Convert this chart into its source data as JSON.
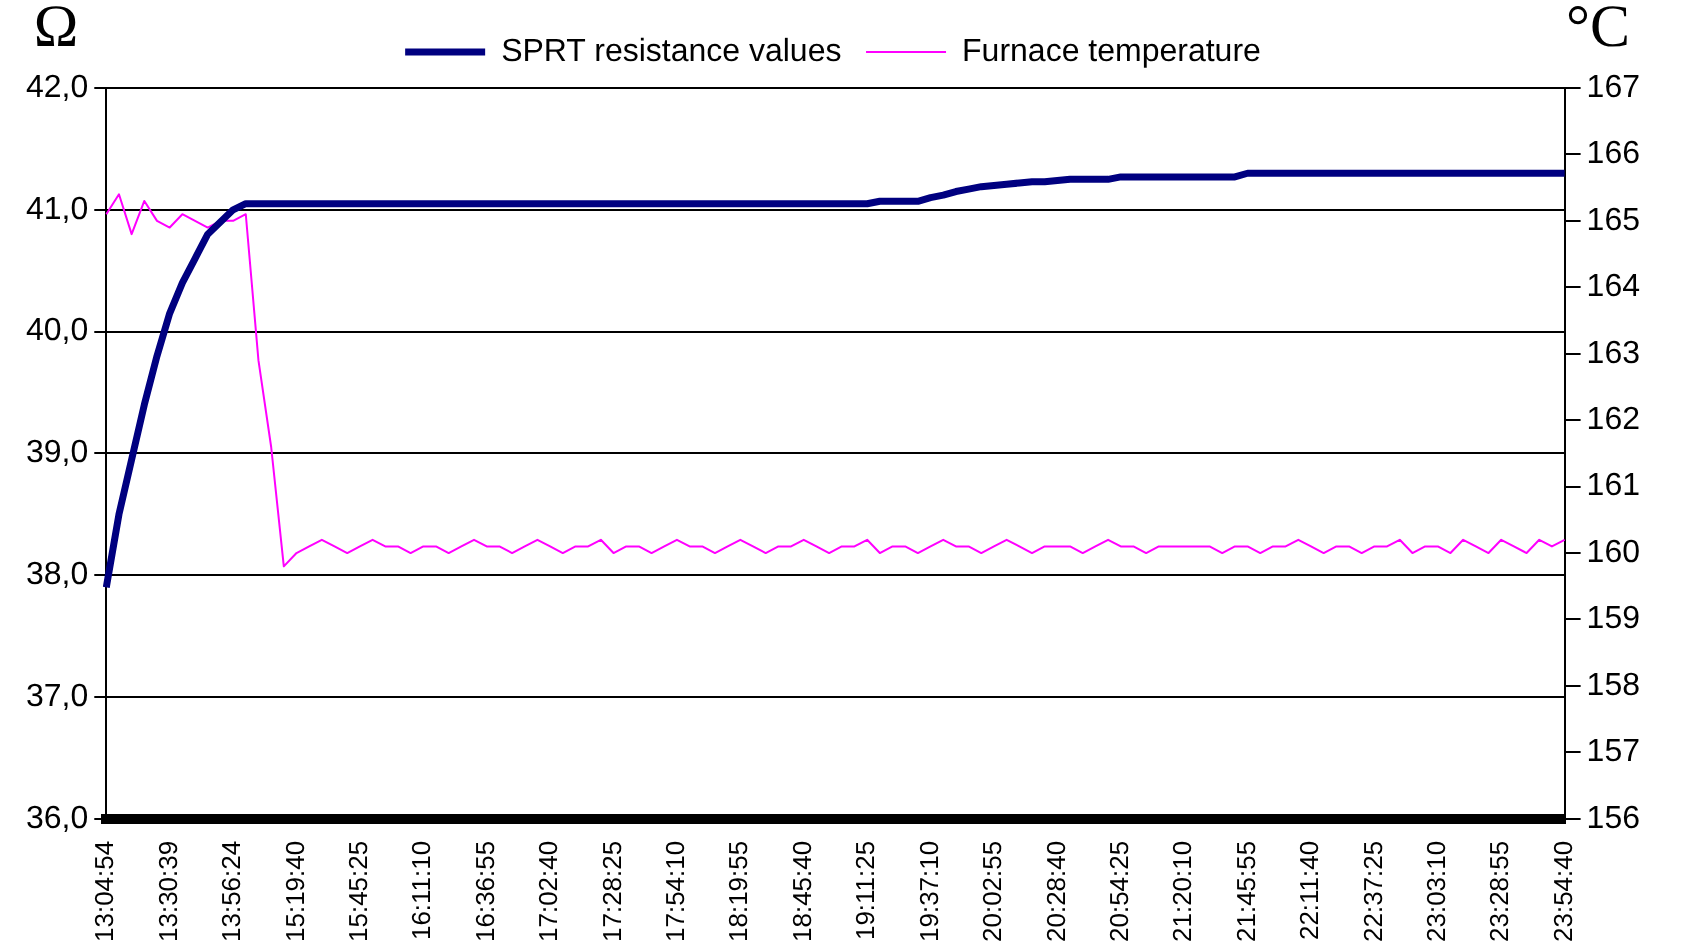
{
  "chart_data": {
    "type": "line",
    "ylabel": "Ω",
    "y2label": "°C",
    "categories": [
      "13:04:54",
      null,
      null,
      null,
      null,
      "13:30:39",
      null,
      null,
      null,
      null,
      "13:56:24",
      null,
      null,
      null,
      null,
      "15:19:40",
      null,
      null,
      null,
      null,
      "15:45:25",
      null,
      null,
      null,
      null,
      "16:11:10",
      null,
      null,
      null,
      null,
      "16:36:55",
      null,
      null,
      null,
      null,
      "17:02:40",
      null,
      null,
      null,
      null,
      "17:28:25",
      null,
      null,
      null,
      null,
      "17:54:10",
      null,
      null,
      null,
      null,
      "18:19:55",
      null,
      null,
      null,
      null,
      "18:45:40",
      null,
      null,
      null,
      null,
      "19:11:25",
      null,
      null,
      null,
      null,
      "19:37:10",
      null,
      null,
      null,
      null,
      "20:02:55",
      null,
      null,
      null,
      null,
      "20:28:40",
      null,
      null,
      null,
      null,
      "20:54:25",
      null,
      null,
      null,
      null,
      "21:20:10",
      null,
      null,
      null,
      null,
      "21:45:55",
      null,
      null,
      null,
      null,
      "22:11:40",
      null,
      null,
      null,
      null,
      "22:37:25",
      null,
      null,
      null,
      null,
      "23:03:10",
      null,
      null,
      null,
      null,
      "23:28:55",
      null,
      null,
      null,
      null,
      "23:54:40"
    ],
    "series": [
      {
        "name": "SPRT resistance values",
        "color": "#000080",
        "values": [
          37.9,
          38.5,
          38.95,
          39.4,
          39.8,
          40.15,
          40.4,
          40.6,
          40.8,
          40.9,
          41.0,
          41.05,
          41.05,
          41.05,
          41.05,
          41.05,
          41.05,
          41.05,
          41.05,
          41.05,
          41.05,
          41.05,
          41.05,
          41.05,
          41.05,
          41.05,
          41.05,
          41.05,
          41.05,
          41.05,
          41.05,
          41.05,
          41.05,
          41.05,
          41.05,
          41.05,
          41.05,
          41.05,
          41.05,
          41.05,
          41.05,
          41.05,
          41.05,
          41.05,
          41.05,
          41.05,
          41.05,
          41.05,
          41.05,
          41.05,
          41.05,
          41.05,
          41.05,
          41.05,
          41.05,
          41.05,
          41.05,
          41.05,
          41.05,
          41.05,
          41.05,
          41.07,
          41.07,
          41.07,
          41.07,
          41.1,
          41.12,
          41.15,
          41.17,
          41.19,
          41.2,
          41.21,
          41.22,
          41.23,
          41.23,
          41.24,
          41.25,
          41.25,
          41.25,
          41.25,
          41.27,
          41.27,
          41.27,
          41.27,
          41.27,
          41.27,
          41.27,
          41.27,
          41.27,
          41.27,
          41.3,
          41.3,
          41.3,
          41.3,
          41.3,
          41.3,
          41.3,
          41.3,
          41.3,
          41.3,
          41.3,
          41.3,
          41.3,
          41.3,
          41.3,
          41.3,
          41.3,
          41.3,
          41.3,
          41.3,
          41.3,
          41.3,
          41.3,
          41.3,
          41.3,
          41.3
        ]
      },
      {
        "name": "Furnace temperature",
        "color": "#ff00ff",
        "axis": "y2",
        "values": [
          165.1,
          165.4,
          164.8,
          165.3,
          165.0,
          164.9,
          165.1,
          165.0,
          164.9,
          165.0,
          165.0,
          165.1,
          162.9,
          161.6,
          159.8,
          160.0,
          160.1,
          160.2,
          160.1,
          160.0,
          160.1,
          160.2,
          160.1,
          160.1,
          160.0,
          160.1,
          160.1,
          160.0,
          160.1,
          160.2,
          160.1,
          160.1,
          160.0,
          160.1,
          160.2,
          160.1,
          160.0,
          160.1,
          160.1,
          160.2,
          160.0,
          160.1,
          160.1,
          160.0,
          160.1,
          160.2,
          160.1,
          160.1,
          160.0,
          160.1,
          160.2,
          160.1,
          160.0,
          160.1,
          160.1,
          160.2,
          160.1,
          160.0,
          160.1,
          160.1,
          160.2,
          160.0,
          160.1,
          160.1,
          160.0,
          160.1,
          160.2,
          160.1,
          160.1,
          160.0,
          160.1,
          160.2,
          160.1,
          160.0,
          160.1,
          160.1,
          160.1,
          160.0,
          160.1,
          160.2,
          160.1,
          160.1,
          160.0,
          160.1,
          160.1,
          160.1,
          160.1,
          160.1,
          160.0,
          160.1,
          160.1,
          160.0,
          160.1,
          160.1,
          160.2,
          160.1,
          160.0,
          160.1,
          160.1,
          160.0,
          160.1,
          160.1,
          160.2,
          160.0,
          160.1,
          160.1,
          160.0,
          160.2,
          160.1,
          160.0,
          160.2,
          160.1,
          160.0,
          160.2,
          160.1,
          160.2
        ]
      }
    ],
    "ylim": [
      36,
      42
    ],
    "yticks": [
      {
        "value": 36,
        "label": "36,0"
      },
      {
        "value": 37,
        "label": "37,0"
      },
      {
        "value": 38,
        "label": "38,0"
      },
      {
        "value": 39,
        "label": "39,0"
      },
      {
        "value": 40,
        "label": "40,0"
      },
      {
        "value": 41,
        "label": "41,0"
      },
      {
        "value": 42,
        "label": "42,0"
      }
    ],
    "y2lim": [
      156,
      167
    ],
    "y2ticks": [
      156,
      157,
      158,
      159,
      160,
      161,
      162,
      163,
      164,
      165,
      166,
      167
    ],
    "grid": "y",
    "legend": "top",
    "marker": "none",
    "line_style": "solid"
  }
}
